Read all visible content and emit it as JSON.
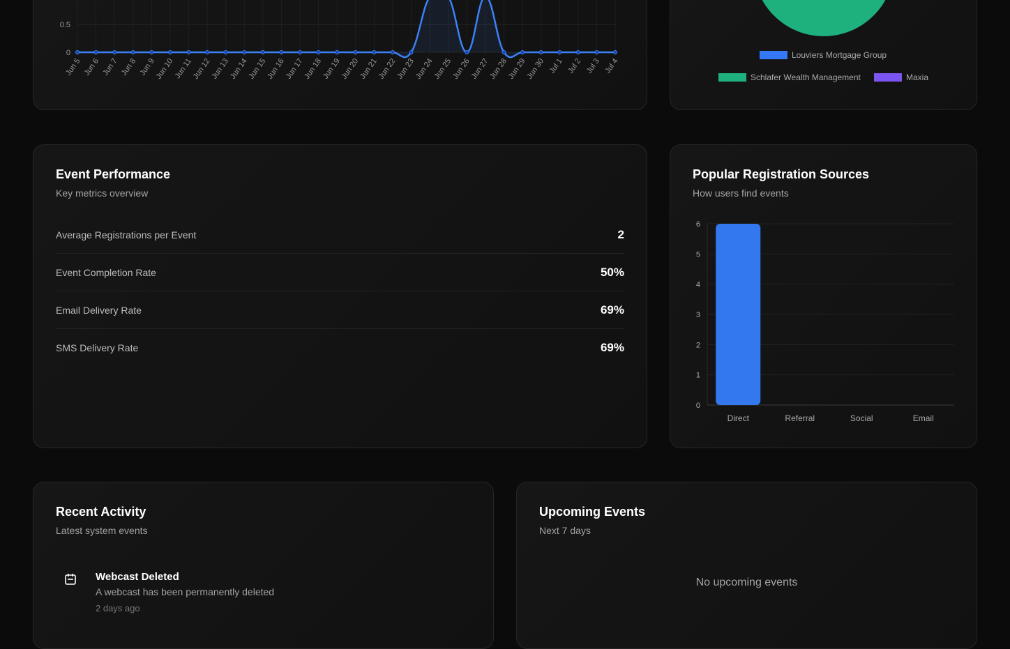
{
  "registrations_chart": {
    "chart_data": {
      "type": "line",
      "x": [
        "Jun 5",
        "Jun 6",
        "Jun 7",
        "Jun 8",
        "Jun 9",
        "Jun 10",
        "Jun 11",
        "Jun 12",
        "Jun 13",
        "Jun 14",
        "Jun 15",
        "Jun 16",
        "Jun 17",
        "Jun 18",
        "Jun 19",
        "Jun 20",
        "Jun 21",
        "Jun 22",
        "Jun 23",
        "Jun 24",
        "Jun 25",
        "Jun 26",
        "Jun 27",
        "Jun 28",
        "Jun 29",
        "Jun 30",
        "Jul 1",
        "Jul 2",
        "Jul 3",
        "Jul 4"
      ],
      "values": [
        0,
        0,
        0,
        0,
        0,
        0,
        0,
        0,
        0,
        0,
        0,
        0,
        0,
        0,
        0,
        0,
        0,
        0,
        0,
        1,
        1,
        0,
        1,
        0,
        0,
        0,
        0,
        0,
        0,
        0
      ],
      "yticks": [
        "0",
        "0.5"
      ],
      "grid": true,
      "color": "#3b82f6"
    }
  },
  "company_chart": {
    "chart_data": {
      "type": "pie",
      "slices": [
        {
          "label": "Louviers Mortgage Group",
          "color": "#3478f6"
        },
        {
          "label": "Schlafer Wealth Management",
          "color": "#1fb17d"
        },
        {
          "label": "Maxia",
          "color": "#7c55f0"
        }
      ],
      "legend": "bottom"
    }
  },
  "performance": {
    "title": "Event Performance",
    "subtitle": "Key metrics overview",
    "metrics": [
      {
        "label": "Average Registrations per Event",
        "value": "2"
      },
      {
        "label": "Event Completion Rate",
        "value": "50%"
      },
      {
        "label": "Email Delivery Rate",
        "value": "69%"
      },
      {
        "label": "SMS Delivery Rate",
        "value": "69%"
      }
    ]
  },
  "sources": {
    "title": "Popular Registration Sources",
    "subtitle": "How users find events",
    "chart_data": {
      "type": "bar",
      "categories": [
        "Direct",
        "Referral",
        "Social",
        "Email"
      ],
      "values": [
        6,
        0,
        0,
        0
      ],
      "yticks": [
        "0",
        "1",
        "2",
        "3",
        "4",
        "5",
        "6"
      ],
      "ylim": [
        0,
        6
      ],
      "grid": true,
      "color": "#3478f0"
    }
  },
  "activity": {
    "title": "Recent Activity",
    "subtitle": "Latest system events",
    "items": [
      {
        "icon": "calendar-icon",
        "title": "Webcast Deleted",
        "description": "A webcast has been permanently deleted",
        "time": "2 days ago"
      }
    ]
  },
  "upcoming": {
    "title": "Upcoming Events",
    "subtitle": "Next 7 days",
    "empty": "No upcoming events"
  }
}
